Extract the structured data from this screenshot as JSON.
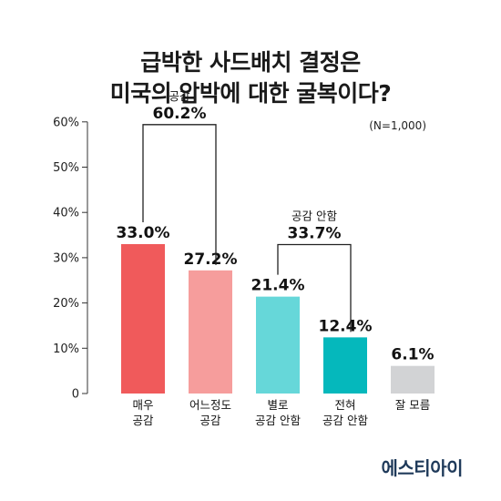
{
  "title_lines": [
    "급박한 사드배치 결정은",
    "미국의 압박에 대한 굴복이다?"
  ],
  "sample_note": "(N=1,000)",
  "brand": "에스티아이",
  "chart_data": {
    "type": "bar",
    "title": "급박한 사드배치 결정은 미국의 압박에 대한 굴복이다?",
    "categories": [
      [
        "매우",
        "공감"
      ],
      [
        "어느정도",
        "공감"
      ],
      [
        "별로",
        "공감 안함"
      ],
      [
        "전혀",
        "공감 안함"
      ],
      [
        "잘 모름"
      ]
    ],
    "values": [
      33.0,
      27.2,
      21.4,
      12.4,
      6.1
    ],
    "value_labels": [
      "33.0%",
      "27.2%",
      "21.4%",
      "12.4%",
      "6.1%"
    ],
    "colors": [
      "#f05a5b",
      "#f69d9c",
      "#66d7d9",
      "#05b8bc",
      "#d2d3d5"
    ],
    "ylim": [
      0,
      60
    ],
    "yticks": [
      0,
      10,
      20,
      30,
      40,
      50,
      60
    ],
    "ytick_labels": [
      "0",
      "10%",
      "20%",
      "30%",
      "40%",
      "50%",
      "60%"
    ],
    "grid": false,
    "groups": [
      {
        "name": "공감",
        "value_label": "60.2%",
        "value": 60.2,
        "bars": [
          0,
          1
        ]
      },
      {
        "name": "공감 안함",
        "value_label": "33.7%",
        "value": 33.7,
        "bars": [
          2,
          3
        ]
      }
    ]
  }
}
